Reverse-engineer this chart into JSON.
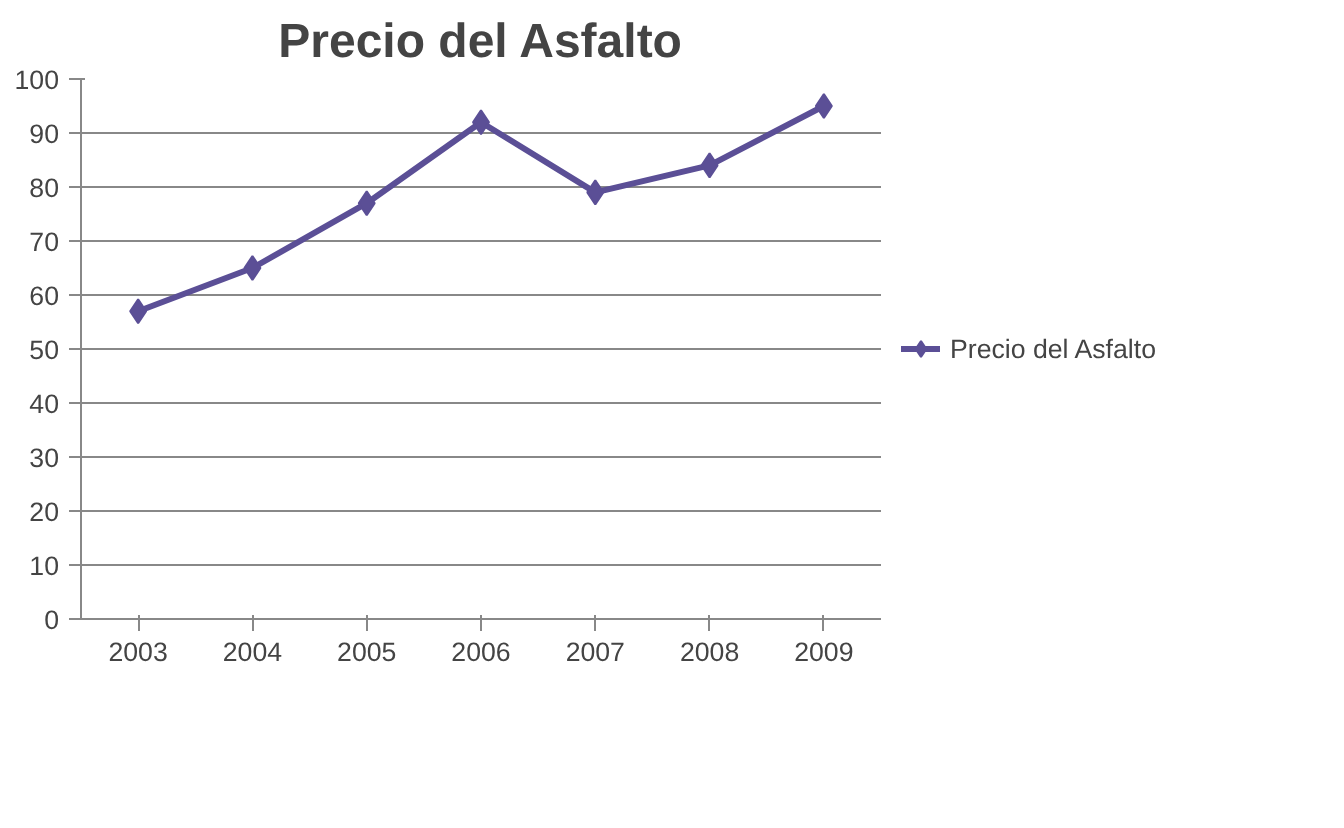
{
  "chart_data": {
    "type": "line",
    "title": "Precio del Asfalto",
    "categories": [
      "2003",
      "2004",
      "2005",
      "2006",
      "2007",
      "2008",
      "2009"
    ],
    "series": [
      {
        "name": "Precio del Asfalto",
        "color": "#5b4f96",
        "values": [
          57,
          65,
          77,
          92,
          79,
          84,
          95
        ]
      }
    ],
    "ylim": [
      0,
      100
    ],
    "yticks": [
      0,
      10,
      20,
      30,
      40,
      50,
      60,
      70,
      80,
      90,
      100
    ],
    "grid": "y",
    "legend": "right",
    "marker": "diamond"
  }
}
